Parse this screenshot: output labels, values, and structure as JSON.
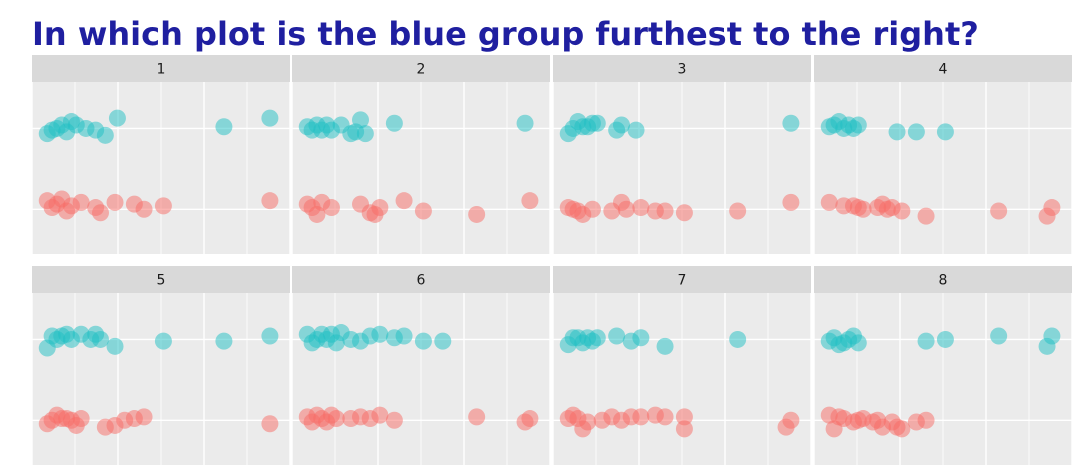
{
  "question": "In which plot is the blue group furthest to the right?",
  "colors": {
    "blue": "#1fbfc4",
    "red": "#f76b66",
    "strip_bg": "#d9d9d9",
    "panel_bg": "#ebebeb",
    "grid": "#ffffff",
    "title": "#1f1fa0"
  },
  "chart_data": {
    "type": "scatter",
    "title": "",
    "xlabel": "",
    "ylabel": "",
    "xlim": [
      0,
      1
    ],
    "grid": true,
    "legend": "none",
    "series_colors": [
      "blue",
      "red"
    ],
    "panels": [
      {
        "label": "1",
        "blue": [
          [
            0.03,
            0.3
          ],
          [
            0.05,
            0.28
          ],
          [
            0.07,
            0.27
          ],
          [
            0.09,
            0.25
          ],
          [
            0.11,
            0.29
          ],
          [
            0.13,
            0.23
          ],
          [
            0.15,
            0.25
          ],
          [
            0.19,
            0.27
          ],
          [
            0.23,
            0.28
          ],
          [
            0.27,
            0.31
          ],
          [
            0.32,
            0.21
          ],
          [
            0.76,
            0.26
          ],
          [
            0.95,
            0.21
          ]
        ],
        "red": [
          [
            0.03,
            0.69
          ],
          [
            0.05,
            0.73
          ],
          [
            0.07,
            0.71
          ],
          [
            0.09,
            0.68
          ],
          [
            0.11,
            0.75
          ],
          [
            0.13,
            0.72
          ],
          [
            0.17,
            0.7
          ],
          [
            0.23,
            0.73
          ],
          [
            0.25,
            0.76
          ],
          [
            0.31,
            0.7
          ],
          [
            0.39,
            0.71
          ],
          [
            0.43,
            0.74
          ],
          [
            0.51,
            0.72
          ],
          [
            0.95,
            0.69
          ]
        ]
      },
      {
        "label": "2",
        "blue": [
          [
            0.03,
            0.26
          ],
          [
            0.05,
            0.28
          ],
          [
            0.07,
            0.25
          ],
          [
            0.09,
            0.28
          ],
          [
            0.11,
            0.25
          ],
          [
            0.13,
            0.28
          ],
          [
            0.17,
            0.25
          ],
          [
            0.21,
            0.3
          ],
          [
            0.23,
            0.29
          ],
          [
            0.25,
            0.22
          ],
          [
            0.27,
            0.3
          ],
          [
            0.39,
            0.24
          ],
          [
            0.93,
            0.24
          ]
        ],
        "red": [
          [
            0.03,
            0.71
          ],
          [
            0.05,
            0.73
          ],
          [
            0.07,
            0.77
          ],
          [
            0.09,
            0.7
          ],
          [
            0.13,
            0.73
          ],
          [
            0.25,
            0.71
          ],
          [
            0.29,
            0.76
          ],
          [
            0.31,
            0.77
          ],
          [
            0.33,
            0.73
          ],
          [
            0.43,
            0.69
          ],
          [
            0.51,
            0.75
          ],
          [
            0.73,
            0.77
          ],
          [
            0.95,
            0.69
          ]
        ]
      },
      {
        "label": "3",
        "blue": [
          [
            0.03,
            0.3
          ],
          [
            0.05,
            0.27
          ],
          [
            0.07,
            0.23
          ],
          [
            0.09,
            0.26
          ],
          [
            0.11,
            0.26
          ],
          [
            0.13,
            0.24
          ],
          [
            0.15,
            0.24
          ],
          [
            0.23,
            0.28
          ],
          [
            0.25,
            0.25
          ],
          [
            0.31,
            0.28
          ],
          [
            0.95,
            0.24
          ]
        ],
        "red": [
          [
            0.03,
            0.73
          ],
          [
            0.05,
            0.74
          ],
          [
            0.07,
            0.75
          ],
          [
            0.09,
            0.77
          ],
          [
            0.13,
            0.74
          ],
          [
            0.21,
            0.75
          ],
          [
            0.25,
            0.7
          ],
          [
            0.27,
            0.74
          ],
          [
            0.33,
            0.73
          ],
          [
            0.39,
            0.75
          ],
          [
            0.43,
            0.75
          ],
          [
            0.51,
            0.76
          ],
          [
            0.73,
            0.75
          ],
          [
            0.95,
            0.7
          ]
        ]
      },
      {
        "label": "4",
        "blue": [
          [
            0.03,
            0.26
          ],
          [
            0.05,
            0.25
          ],
          [
            0.07,
            0.23
          ],
          [
            0.09,
            0.27
          ],
          [
            0.11,
            0.25
          ],
          [
            0.13,
            0.27
          ],
          [
            0.15,
            0.25
          ],
          [
            0.31,
            0.29
          ],
          [
            0.39,
            0.29
          ],
          [
            0.51,
            0.29
          ]
        ],
        "red": [
          [
            0.03,
            0.7
          ],
          [
            0.09,
            0.72
          ],
          [
            0.13,
            0.72
          ],
          [
            0.15,
            0.73
          ],
          [
            0.17,
            0.74
          ],
          [
            0.23,
            0.73
          ],
          [
            0.25,
            0.71
          ],
          [
            0.27,
            0.74
          ],
          [
            0.29,
            0.73
          ],
          [
            0.33,
            0.75
          ],
          [
            0.43,
            0.78
          ],
          [
            0.73,
            0.75
          ],
          [
            0.93,
            0.78
          ],
          [
            0.95,
            0.73
          ]
        ]
      },
      {
        "label": "5",
        "blue": [
          [
            0.03,
            0.32
          ],
          [
            0.05,
            0.25
          ],
          [
            0.07,
            0.27
          ],
          [
            0.09,
            0.25
          ],
          [
            0.11,
            0.24
          ],
          [
            0.13,
            0.27
          ],
          [
            0.17,
            0.24
          ],
          [
            0.21,
            0.27
          ],
          [
            0.23,
            0.24
          ],
          [
            0.25,
            0.27
          ],
          [
            0.31,
            0.31
          ],
          [
            0.51,
            0.28
          ],
          [
            0.76,
            0.28
          ],
          [
            0.95,
            0.25
          ]
        ],
        "red": [
          [
            0.03,
            0.76
          ],
          [
            0.05,
            0.74
          ],
          [
            0.07,
            0.71
          ],
          [
            0.09,
            0.73
          ],
          [
            0.11,
            0.73
          ],
          [
            0.13,
            0.74
          ],
          [
            0.15,
            0.77
          ],
          [
            0.17,
            0.73
          ],
          [
            0.27,
            0.78
          ],
          [
            0.31,
            0.77
          ],
          [
            0.35,
            0.74
          ],
          [
            0.39,
            0.73
          ],
          [
            0.43,
            0.72
          ],
          [
            0.95,
            0.76
          ]
        ]
      },
      {
        "label": "6",
        "blue": [
          [
            0.03,
            0.24
          ],
          [
            0.05,
            0.29
          ],
          [
            0.07,
            0.27
          ],
          [
            0.09,
            0.24
          ],
          [
            0.11,
            0.27
          ],
          [
            0.13,
            0.24
          ],
          [
            0.15,
            0.29
          ],
          [
            0.17,
            0.23
          ],
          [
            0.21,
            0.27
          ],
          [
            0.25,
            0.28
          ],
          [
            0.29,
            0.25
          ],
          [
            0.33,
            0.24
          ],
          [
            0.39,
            0.26
          ],
          [
            0.43,
            0.25
          ],
          [
            0.51,
            0.28
          ],
          [
            0.59,
            0.28
          ]
        ],
        "red": [
          [
            0.03,
            0.72
          ],
          [
            0.05,
            0.75
          ],
          [
            0.07,
            0.71
          ],
          [
            0.09,
            0.73
          ],
          [
            0.11,
            0.75
          ],
          [
            0.13,
            0.71
          ],
          [
            0.15,
            0.73
          ],
          [
            0.21,
            0.73
          ],
          [
            0.25,
            0.72
          ],
          [
            0.29,
            0.73
          ],
          [
            0.33,
            0.71
          ],
          [
            0.39,
            0.74
          ],
          [
            0.73,
            0.72
          ],
          [
            0.93,
            0.75
          ],
          [
            0.95,
            0.73
          ]
        ]
      },
      {
        "label": "7",
        "blue": [
          [
            0.03,
            0.3
          ],
          [
            0.05,
            0.26
          ],
          [
            0.07,
            0.26
          ],
          [
            0.09,
            0.29
          ],
          [
            0.11,
            0.26
          ],
          [
            0.13,
            0.28
          ],
          [
            0.15,
            0.26
          ],
          [
            0.23,
            0.25
          ],
          [
            0.29,
            0.28
          ],
          [
            0.33,
            0.26
          ],
          [
            0.43,
            0.31
          ],
          [
            0.73,
            0.27
          ]
        ],
        "red": [
          [
            0.03,
            0.73
          ],
          [
            0.05,
            0.71
          ],
          [
            0.07,
            0.73
          ],
          [
            0.09,
            0.79
          ],
          [
            0.11,
            0.75
          ],
          [
            0.17,
            0.74
          ],
          [
            0.21,
            0.72
          ],
          [
            0.25,
            0.74
          ],
          [
            0.29,
            0.72
          ],
          [
            0.33,
            0.72
          ],
          [
            0.39,
            0.71
          ],
          [
            0.43,
            0.72
          ],
          [
            0.51,
            0.72
          ],
          [
            0.51,
            0.79
          ],
          [
            0.93,
            0.78
          ],
          [
            0.95,
            0.74
          ]
        ]
      },
      {
        "label": "8",
        "blue": [
          [
            0.03,
            0.28
          ],
          [
            0.05,
            0.26
          ],
          [
            0.07,
            0.3
          ],
          [
            0.09,
            0.29
          ],
          [
            0.11,
            0.27
          ],
          [
            0.13,
            0.25
          ],
          [
            0.15,
            0.29
          ],
          [
            0.43,
            0.28
          ],
          [
            0.51,
            0.27
          ],
          [
            0.73,
            0.25
          ],
          [
            0.93,
            0.31
          ],
          [
            0.95,
            0.25
          ]
        ],
        "red": [
          [
            0.03,
            0.71
          ],
          [
            0.05,
            0.79
          ],
          [
            0.07,
            0.72
          ],
          [
            0.09,
            0.73
          ],
          [
            0.13,
            0.75
          ],
          [
            0.15,
            0.74
          ],
          [
            0.17,
            0.73
          ],
          [
            0.21,
            0.75
          ],
          [
            0.23,
            0.74
          ],
          [
            0.25,
            0.78
          ],
          [
            0.29,
            0.75
          ],
          [
            0.31,
            0.78
          ],
          [
            0.33,
            0.79
          ],
          [
            0.39,
            0.75
          ],
          [
            0.43,
            0.74
          ]
        ]
      }
    ]
  }
}
